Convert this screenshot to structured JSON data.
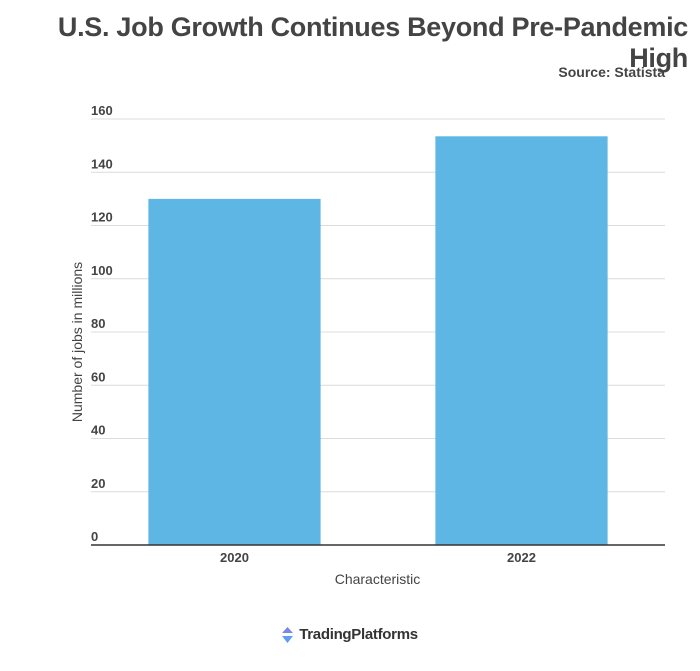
{
  "title": "U.S. Job Growth Continues Beyond Pre-Pandemic High",
  "source": "Source: Statista",
  "brand": {
    "name": "TradingPlatforms",
    "icon": "trading-platforms-logo-icon",
    "color": "#6b7cf0"
  },
  "chart_data": {
    "type": "bar",
    "categories": [
      "2020",
      "2022"
    ],
    "values": [
      130,
      153.5
    ],
    "xlabel": "Characteristic",
    "ylabel": "Number of jobs in millions",
    "ylim": [
      0,
      160
    ],
    "yticks": [
      0,
      20,
      40,
      60,
      80,
      100,
      120,
      140,
      160
    ],
    "grid": true,
    "bar_color": "#5eb6e4"
  }
}
